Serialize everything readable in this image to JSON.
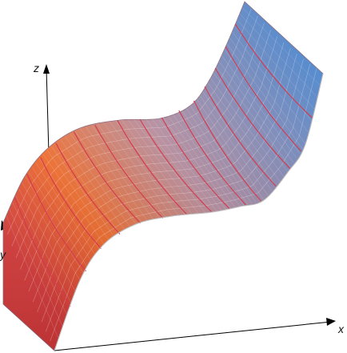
{
  "figure": {
    "axes": {
      "x_label": "x",
      "y_label": "y",
      "z_label": "z"
    },
    "surface": {
      "gradient_start_color": "#d63a3a",
      "gradient_mid_warm_color": "#ee6a2a",
      "gradient_mid_color": "#b58a9a",
      "gradient_end_color": "#3f82cf",
      "mesh_color": "#d43c4f",
      "fine_line_color": "#ffffff"
    }
  }
}
